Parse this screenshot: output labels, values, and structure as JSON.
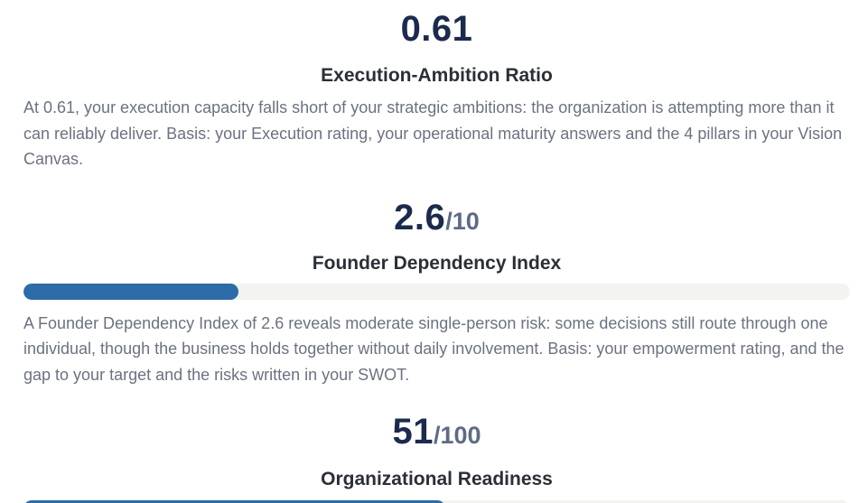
{
  "metrics": [
    {
      "value": "0.61",
      "suffix": "",
      "title": "Execution-Ambition Ratio",
      "description": "At 0.61, your execution capacity falls short of your strategic ambitions: the organization is attempting more than it can reliably deliver. Basis: your Execution rating, your operational maturity answers and the 4 pillars in your Vision Canvas."
    },
    {
      "value": "2.6",
      "suffix": "/10",
      "title": "Founder Dependency Index",
      "progress_fraction": 0.26,
      "bar_color": "#2d6ca8",
      "description": "A Founder Dependency Index of 2.6 reveals moderate single-person risk: some decisions still route through one individual, though the business holds together without daily involvement. Basis: your empowerment rating, and the gap to your target and the risks written in your SWOT."
    },
    {
      "value": "51",
      "suffix": "/100",
      "title": "Organizational Readiness",
      "progress_fraction": 0.51,
      "bar_color": "#2d6ca8"
    }
  ]
}
